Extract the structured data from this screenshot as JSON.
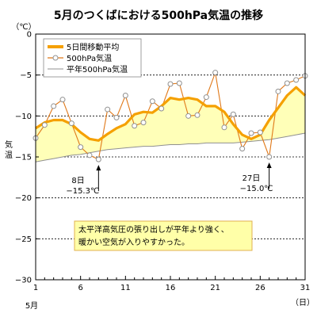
{
  "chart_data": {
    "type": "line",
    "title": "5月のつくばにおける500hPa気温の推移",
    "unit_label": "（℃）",
    "ylabel": "気温",
    "xlabel_month": "5月",
    "xlabel_unit": "（日）",
    "xlim": [
      1,
      31
    ],
    "ylim": [
      -30,
      0
    ],
    "x_ticks": [
      1,
      6,
      11,
      16,
      21,
      26,
      31
    ],
    "y_ticks": [
      0,
      -5,
      -10,
      -15,
      -20,
      -25,
      -30
    ],
    "grid": "horizontal dashed",
    "legend_position": "top-left",
    "x": [
      1,
      2,
      3,
      4,
      5,
      6,
      7,
      8,
      9,
      10,
      11,
      12,
      13,
      14,
      15,
      16,
      17,
      18,
      19,
      20,
      21,
      22,
      23,
      24,
      25,
      26,
      27,
      28,
      29,
      30,
      31
    ],
    "series": [
      {
        "name": "5日間移動平均",
        "color": "#f5a000",
        "values": [
          -11.5,
          -10.8,
          -10.5,
          -10.5,
          -11.0,
          -12.0,
          -12.8,
          -13.0,
          -12.2,
          -11.5,
          -11.0,
          -9.8,
          -9.5,
          -9.6,
          -8.8,
          -7.8,
          -8.0,
          -7.8,
          -8.0,
          -8.8,
          -8.8,
          -9.5,
          -11.0,
          -12.3,
          -12.8,
          -12.3,
          -10.5,
          -9.0,
          -7.5,
          -6.5,
          -7.5
        ]
      },
      {
        "name": "500hPa気温",
        "color": "#e07818",
        "marker_fill": "#ffffff",
        "marker_stroke": "#909090",
        "values": [
          -12.7,
          -11.1,
          -8.8,
          -8.0,
          -10.9,
          -13.8,
          -14.8,
          -15.3,
          -9.2,
          -10.2,
          -7.5,
          -11.2,
          -10.8,
          -8.2,
          -9.1,
          -6.1,
          -6.0,
          -10.0,
          -9.9,
          -7.7,
          -4.7,
          -11.4,
          -9.8,
          -14.0,
          -12.1,
          -12.0,
          -15.0,
          -7.0,
          -6.0,
          -5.6,
          -5.1
        ]
      },
      {
        "name": "平年500hPa気温",
        "color": "#909090",
        "values": [
          -15.6,
          -15.4,
          -15.2,
          -15.0,
          -14.8,
          -14.7,
          -14.5,
          -14.3,
          -14.1,
          -14.0,
          -13.9,
          -13.8,
          -13.7,
          -13.7,
          -13.6,
          -13.5,
          -13.5,
          -13.4,
          -13.4,
          -13.3,
          -13.3,
          -13.3,
          -13.3,
          -13.2,
          -13.1,
          -13.0,
          -12.9,
          -12.7,
          -12.5,
          -12.3,
          -12.1
        ]
      }
    ],
    "fill_between": {
      "upper_series": "5日間移動平均",
      "lower_series": "平年500hPa気温",
      "color": "#ffffb8"
    },
    "annotations": [
      {
        "day": 8,
        "value": -15.3,
        "date_label": "8日",
        "value_label": "−15.3℃"
      },
      {
        "day": 27,
        "value": -15.0,
        "date_label": "27日",
        "value_label": "−15.0℃"
      }
    ],
    "comment_lines": [
      "太平洋高気圧の張り出しが平年より強く、",
      "暖かい空気が入りやすかった。"
    ],
    "comment_box_fill": "#ffffa8",
    "comment_box_stroke": "#e0b050"
  }
}
